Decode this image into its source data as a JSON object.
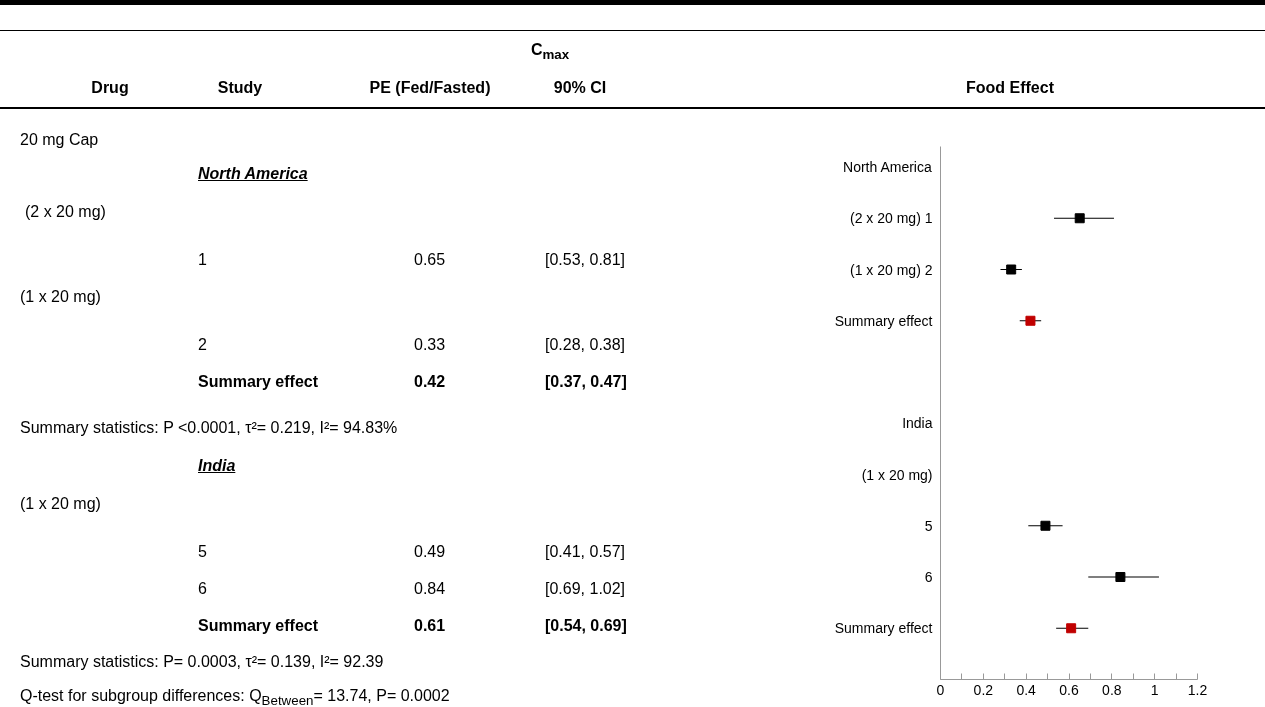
{
  "chart_data": {
    "type": "scatter",
    "orientation": "horizontal",
    "title": "C$_{max}$",
    "annotations": [
      "Drug",
      "Study",
      "PE (Fed/Fasted)",
      "90% CI",
      "Food Effect",
      "20 mg Cap",
      "North America",
      "(2 x 20 mg)",
      "1",
      "0.65",
      "[0.53, 0.81]",
      "(1 x 20 mg)",
      "2",
      "0.33",
      "[0.28, 0.38]",
      "Summary effect",
      "0.42",
      "[0.37, 0.47]",
      "Summary statistics: P <0.0001, τ²= 0.219, I²= 94.83%",
      "India",
      "(1 x 20 mg)",
      "5",
      "0.49",
      "[0.41, 0.57]",
      "6",
      "0.84",
      "[0.69, 1.02]",
      "Summary effect",
      "0.61",
      "[0.54, 0.69]",
      "Summary statistics: P= 0.0003, τ²= 0.139, I²= 92.39",
      "Q-test for subgroup differences: Q$_{Between}$= 13.74, P= 0.0002"
    ],
    "categories": [
      "North America",
      "(2 x 20 mg) 1",
      "(1 x 20 mg) 2",
      "Summary effect",
      null,
      "India",
      "(1 x 20 mg)",
      "5",
      "6",
      "Summary effect",
      null
    ],
    "series": [
      {
        "color": "#000000",
        "values": [
          null,
          0.65,
          0.33,
          null,
          null,
          null,
          null,
          0.49,
          0.84,
          null,
          null
        ],
        "errors": [
          null,
          [
            0.53,
            0.81
          ],
          [
            0.28,
            0.38
          ],
          null,
          null,
          null,
          null,
          [
            0.41,
            0.57
          ],
          [
            0.69,
            1.02
          ],
          null,
          null
        ]
      },
      {
        "color": "#c00000",
        "values": [
          null,
          null,
          null,
          0.42,
          null,
          null,
          null,
          null,
          null,
          0.61,
          null
        ],
        "errors": [
          null,
          null,
          null,
          [
            0.37,
            0.47
          ],
          null,
          null,
          null,
          null,
          null,
          [
            0.54,
            0.69
          ],
          null
        ]
      }
    ],
    "xlim": [
      0,
      1.2
    ],
    "xticks": [
      0,
      {
        "value": 0.1,
        "label": null
      },
      0.2,
      {
        "value": 0.3,
        "label": null
      },
      0.4,
      {
        "value": 0.5,
        "label": null
      },
      0.6,
      {
        "value": 0.7,
        "label": null
      },
      0.8,
      {
        "value": 0.9,
        "label": null
      },
      1,
      {
        "value": 1.1,
        "label": null
      },
      1.2
    ],
    "marker": "square",
    "grid": false
  }
}
